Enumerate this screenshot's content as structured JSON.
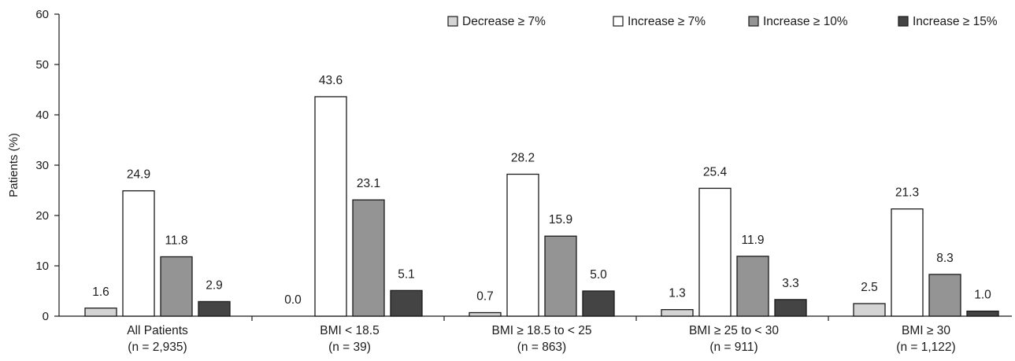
{
  "chart_data": {
    "type": "bar",
    "title": "",
    "xlabel": "",
    "ylabel": "Patients (%)",
    "ylim": [
      0,
      60
    ],
    "yticks": [
      0,
      10,
      20,
      30,
      40,
      50,
      60
    ],
    "grid": false,
    "legend_position": "top-right",
    "categories": [
      {
        "label": "All Patients",
        "sublabel": "(n = 2,935)"
      },
      {
        "label": "BMI < 18.5",
        "sublabel": "(n = 39)"
      },
      {
        "label": "BMI ≥ 18.5 to < 25",
        "sublabel": "(n = 863)"
      },
      {
        "label": "BMI ≥ 25 to < 30",
        "sublabel": "(n = 911)"
      },
      {
        "label": "BMI ≥ 30",
        "sublabel": "(n = 1,122)"
      }
    ],
    "series": [
      {
        "name": "Decrease ≥ 7%",
        "color": "#d4d4d4",
        "values": [
          1.6,
          0.0,
          0.7,
          1.3,
          2.5
        ],
        "labels": [
          "1.6",
          "0.0",
          "0.7",
          "1.3",
          "2.5"
        ]
      },
      {
        "name": "Increase ≥ 7%",
        "color": "#ffffff",
        "values": [
          24.9,
          43.6,
          28.2,
          25.4,
          21.3
        ],
        "labels": [
          "24.9",
          "43.6",
          "28.2",
          "25.4",
          "21.3"
        ]
      },
      {
        "name": "Increase ≥ 10%",
        "color": "#949494",
        "values": [
          11.8,
          23.1,
          15.9,
          11.9,
          8.3
        ],
        "labels": [
          "11.8",
          "23.1",
          "15.9",
          "11.9",
          "8.3"
        ]
      },
      {
        "name": "Increase ≥ 15%",
        "color": "#444444",
        "values": [
          2.9,
          5.1,
          5.0,
          3.3,
          1.0
        ],
        "labels": [
          "2.9",
          "5.1",
          "5.0",
          "3.3",
          "1.0"
        ]
      }
    ]
  }
}
